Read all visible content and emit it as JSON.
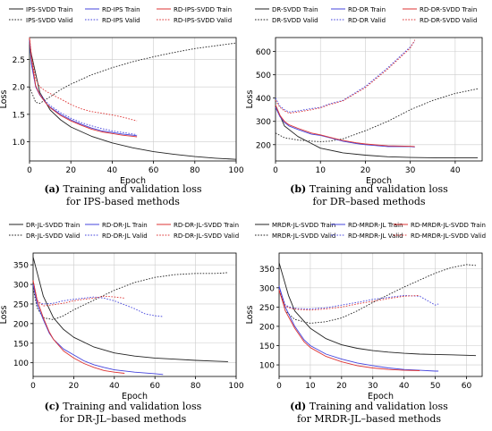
{
  "chart_data": [
    {
      "type": "line",
      "xlabel": "Epoch",
      "ylabel": "Loss",
      "xlim": [
        0,
        100
      ],
      "ylim": [
        0.65,
        2.9
      ],
      "xticks": [
        0,
        20,
        40,
        60,
        80,
        100
      ],
      "yticks": [
        1.0,
        1.5,
        2.0,
        2.5
      ],
      "ytick_labels": [
        "1.0",
        "1.5",
        "2.0",
        "2.5"
      ],
      "legend_position": "top",
      "caption": {
        "tag": "(a)",
        "line1": "Training and validation loss",
        "line2": "for IPS-based methods"
      },
      "series": [
        {
          "name": "IPS-SVDD Train",
          "color": "#222222",
          "dash": "solid",
          "x": [
            0,
            5,
            10,
            15,
            20,
            30,
            40,
            50,
            60,
            70,
            80,
            90,
            100
          ],
          "y": [
            2.75,
            1.9,
            1.58,
            1.4,
            1.27,
            1.1,
            0.98,
            0.89,
            0.82,
            0.77,
            0.73,
            0.7,
            0.68
          ]
        },
        {
          "name": "IPS-SVDD Valid",
          "color": "#222222",
          "dash": "dotted",
          "x": [
            0,
            3,
            5,
            10,
            15,
            20,
            30,
            40,
            50,
            60,
            70,
            80,
            90,
            100
          ],
          "y": [
            2.0,
            1.72,
            1.7,
            1.82,
            1.95,
            2.05,
            2.22,
            2.35,
            2.46,
            2.55,
            2.63,
            2.7,
            2.75,
            2.8
          ]
        },
        {
          "name": "RD-IPS Train",
          "color": "#4444dd",
          "dash": "solid",
          "x": [
            0,
            1,
            3,
            5,
            8,
            10,
            15,
            20,
            25,
            30,
            35,
            40,
            45,
            50,
            52
          ],
          "y": [
            2.85,
            2.4,
            2.0,
            1.85,
            1.7,
            1.63,
            1.5,
            1.4,
            1.32,
            1.25,
            1.2,
            1.17,
            1.14,
            1.12,
            1.11
          ]
        },
        {
          "name": "RD-IPS Valid",
          "color": "#4444dd",
          "dash": "dotted",
          "x": [
            0,
            1,
            3,
            5,
            8,
            10,
            15,
            20,
            25,
            30,
            35,
            40,
            45,
            50,
            52
          ],
          "y": [
            2.85,
            2.4,
            2.02,
            1.88,
            1.73,
            1.66,
            1.53,
            1.43,
            1.35,
            1.29,
            1.24,
            1.2,
            1.17,
            1.14,
            1.13
          ]
        },
        {
          "name": "RD-IPS-SVDD Train",
          "color": "#dd3333",
          "dash": "solid",
          "x": [
            0,
            1,
            3,
            5,
            8,
            10,
            15,
            20,
            25,
            30,
            35,
            40,
            45,
            50,
            52
          ],
          "y": [
            2.9,
            2.5,
            2.02,
            1.86,
            1.7,
            1.62,
            1.48,
            1.38,
            1.3,
            1.23,
            1.18,
            1.15,
            1.12,
            1.1,
            1.09
          ]
        },
        {
          "name": "RD-IPS-SVDD Valid",
          "color": "#dd3333",
          "dash": "dotted",
          "x": [
            0,
            1,
            3,
            5,
            8,
            10,
            15,
            20,
            25,
            30,
            35,
            40,
            45,
            50,
            52
          ],
          "y": [
            2.9,
            2.55,
            2.15,
            2.0,
            1.92,
            1.88,
            1.78,
            1.68,
            1.6,
            1.55,
            1.52,
            1.49,
            1.45,
            1.4,
            1.38
          ]
        }
      ]
    },
    {
      "type": "line",
      "xlabel": "Epoch",
      "ylabel": "Loss",
      "xlim": [
        0,
        46
      ],
      "ylim": [
        130,
        660
      ],
      "xticks": [
        0,
        10,
        20,
        30,
        40
      ],
      "yticks": [
        200,
        300,
        400,
        500,
        600
      ],
      "ytick_labels": [
        "200",
        "300",
        "400",
        "500",
        "600"
      ],
      "legend_position": "top",
      "caption": {
        "tag": "(b)",
        "line1": "Training and validation loss",
        "line2": "for DR–based methods"
      },
      "series": [
        {
          "name": "DR-SVDD Train",
          "color": "#222222",
          "dash": "solid",
          "x": [
            0,
            2,
            5,
            8,
            10,
            15,
            20,
            25,
            30,
            35,
            40,
            45
          ],
          "y": [
            370,
            280,
            235,
            205,
            185,
            165,
            155,
            148,
            145,
            144,
            143,
            143
          ]
        },
        {
          "name": "DR-SVDD Valid",
          "color": "#222222",
          "dash": "dotted",
          "x": [
            0,
            2,
            5,
            8,
            10,
            12,
            15,
            20,
            25,
            30,
            35,
            40,
            45
          ],
          "y": [
            250,
            230,
            220,
            215,
            213,
            215,
            225,
            260,
            300,
            350,
            390,
            420,
            440
          ]
        },
        {
          "name": "RD-DR Train",
          "color": "#4444dd",
          "dash": "solid",
          "x": [
            0,
            1,
            2,
            3,
            5,
            8,
            10,
            12,
            15,
            18,
            20,
            25,
            30,
            31
          ],
          "y": [
            360,
            320,
            295,
            280,
            265,
            245,
            240,
            230,
            215,
            205,
            200,
            192,
            192,
            190
          ]
        },
        {
          "name": "RD-DR Valid",
          "color": "#4444dd",
          "dash": "dotted",
          "x": [
            0,
            1,
            2,
            3,
            5,
            8,
            10,
            12,
            15,
            20,
            25,
            30,
            31
          ],
          "y": [
            400,
            365,
            350,
            340,
            345,
            355,
            360,
            375,
            390,
            450,
            530,
            620,
            645
          ]
        },
        {
          "name": "RD-DR-SVDD Train",
          "color": "#dd3333",
          "dash": "solid",
          "x": [
            0,
            1,
            2,
            3,
            5,
            8,
            10,
            12,
            15,
            18,
            20,
            25,
            30,
            31
          ],
          "y": [
            370,
            325,
            300,
            285,
            270,
            250,
            242,
            232,
            218,
            208,
            203,
            195,
            193,
            192
          ]
        },
        {
          "name": "RD-DR-SVDD Valid",
          "color": "#dd3333",
          "dash": "dotted",
          "x": [
            0,
            1,
            2,
            3,
            5,
            8,
            10,
            12,
            15,
            20,
            25,
            30,
            31
          ],
          "y": [
            390,
            360,
            345,
            335,
            340,
            350,
            358,
            372,
            388,
            445,
            525,
            615,
            650
          ]
        }
      ]
    },
    {
      "type": "line",
      "xlabel": "Epoch",
      "ylabel": "Loss",
      "xlim": [
        0,
        100
      ],
      "ylim": [
        65,
        380
      ],
      "xticks": [
        0,
        20,
        40,
        60,
        80,
        100
      ],
      "yticks": [
        100,
        150,
        200,
        250,
        300,
        350
      ],
      "ytick_labels": [
        "100",
        "150",
        "200",
        "250",
        "300",
        "350"
      ],
      "legend_position": "top",
      "caption": {
        "tag": "(c)",
        "line1": "Training and validation loss",
        "line2": "for DR-JL–based methods"
      },
      "series": [
        {
          "name": "DR-JL-SVDD Train",
          "color": "#222222",
          "dash": "solid",
          "x": [
            0,
            5,
            10,
            15,
            20,
            30,
            40,
            50,
            60,
            70,
            80,
            90,
            96
          ],
          "y": [
            370,
            270,
            215,
            185,
            165,
            140,
            125,
            117,
            112,
            109,
            106,
            104,
            103
          ]
        },
        {
          "name": "DR-JL-SVDD Valid",
          "color": "#222222",
          "dash": "dotted",
          "x": [
            0,
            2,
            5,
            10,
            15,
            20,
            30,
            40,
            50,
            60,
            70,
            80,
            90,
            96
          ],
          "y": [
            290,
            240,
            215,
            210,
            220,
            235,
            260,
            285,
            305,
            318,
            325,
            328,
            328,
            330
          ]
        },
        {
          "name": "RD-DR-JL Train",
          "color": "#4444dd",
          "dash": "solid",
          "x": [
            0,
            2,
            5,
            8,
            10,
            15,
            20,
            25,
            30,
            35,
            40,
            50,
            60,
            64
          ],
          "y": [
            300,
            250,
            210,
            175,
            160,
            135,
            120,
            105,
            95,
            88,
            82,
            76,
            72,
            70
          ]
        },
        {
          "name": "RD-DR-JL Valid",
          "color": "#4444dd",
          "dash": "dotted",
          "x": [
            0,
            2,
            5,
            10,
            15,
            20,
            25,
            30,
            35,
            40,
            45,
            50,
            55,
            60,
            64
          ],
          "y": [
            300,
            255,
            250,
            252,
            258,
            262,
            265,
            268,
            265,
            258,
            248,
            238,
            225,
            220,
            218
          ]
        },
        {
          "name": "RD-DR-JL-SVDD Train",
          "color": "#dd3333",
          "dash": "solid",
          "x": [
            0,
            2,
            5,
            8,
            10,
            15,
            20,
            25,
            30,
            35,
            40,
            45
          ],
          "y": [
            310,
            260,
            215,
            178,
            160,
            130,
            112,
            98,
            88,
            80,
            76,
            73
          ]
        },
        {
          "name": "RD-DR-JL-SVDD Valid",
          "color": "#dd3333",
          "dash": "dotted",
          "x": [
            0,
            2,
            5,
            10,
            15,
            20,
            25,
            30,
            35,
            40,
            45
          ],
          "y": [
            310,
            260,
            245,
            248,
            252,
            258,
            262,
            265,
            270,
            268,
            265
          ]
        }
      ]
    },
    {
      "type": "line",
      "xlabel": "Epoch",
      "ylabel": "Loss",
      "xlim": [
        0,
        65
      ],
      "ylim": [
        70,
        390
      ],
      "xticks": [
        0,
        10,
        20,
        30,
        40,
        50,
        60
      ],
      "yticks": [
        100,
        150,
        200,
        250,
        300,
        350
      ],
      "ytick_labels": [
        "100",
        "150",
        "200",
        "250",
        "300",
        "350"
      ],
      "legend_position": "top",
      "caption": {
        "tag": "(d)",
        "line1": "Training and validation loss",
        "line2": "for MRDR-JL–based methods"
      },
      "series": [
        {
          "name": "MRDR-JL-SVDD Train",
          "color": "#222222",
          "dash": "solid",
          "x": [
            0,
            3,
            5,
            10,
            15,
            20,
            25,
            30,
            35,
            40,
            45,
            50,
            55,
            60,
            63
          ],
          "y": [
            365,
            280,
            240,
            195,
            168,
            152,
            143,
            137,
            133,
            130,
            128,
            127,
            126,
            125,
            124
          ]
        },
        {
          "name": "MRDR-JL-SVDD Valid",
          "color": "#222222",
          "dash": "dotted",
          "x": [
            0,
            2,
            5,
            10,
            15,
            20,
            25,
            30,
            35,
            40,
            45,
            50,
            55,
            60,
            63
          ],
          "y": [
            300,
            240,
            218,
            208,
            212,
            222,
            240,
            262,
            282,
            302,
            320,
            338,
            352,
            360,
            358
          ]
        },
        {
          "name": "RD-MRDR-JL Train",
          "color": "#4444dd",
          "dash": "solid",
          "x": [
            0,
            2,
            5,
            8,
            10,
            15,
            20,
            25,
            30,
            35,
            40,
            45,
            50,
            51
          ],
          "y": [
            305,
            250,
            200,
            165,
            150,
            128,
            115,
            105,
            98,
            92,
            88,
            86,
            84,
            84
          ]
        },
        {
          "name": "RD-MRDR-JL Valid",
          "color": "#4444dd",
          "dash": "dotted",
          "x": [
            0,
            2,
            4,
            6,
            10,
            15,
            20,
            25,
            30,
            35,
            40,
            45,
            50,
            51
          ],
          "y": [
            300,
            255,
            248,
            246,
            245,
            248,
            255,
            262,
            270,
            275,
            280,
            278,
            255,
            258
          ]
        },
        {
          "name": "RD-MRDR-JL-SVDD Train",
          "color": "#dd3333",
          "dash": "solid",
          "x": [
            0,
            2,
            5,
            8,
            10,
            15,
            20,
            25,
            30,
            35,
            40,
            45
          ],
          "y": [
            295,
            240,
            195,
            160,
            145,
            122,
            108,
            98,
            92,
            88,
            86,
            85
          ]
        },
        {
          "name": "RD-MRDR-JL-SVDD Valid",
          "color": "#dd3333",
          "dash": "dotted",
          "x": [
            0,
            2,
            4,
            6,
            10,
            15,
            20,
            25,
            30,
            35,
            40,
            45
          ],
          "y": [
            290,
            252,
            246,
            244,
            242,
            245,
            250,
            258,
            265,
            272,
            278,
            280
          ]
        }
      ]
    }
  ]
}
